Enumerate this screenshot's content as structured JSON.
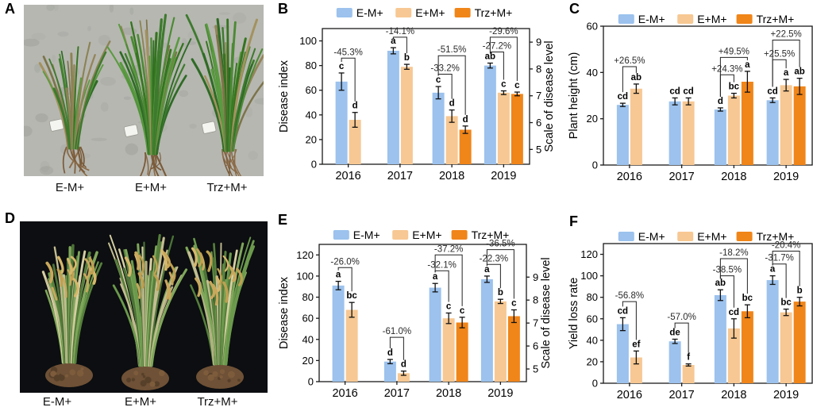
{
  "panels": {
    "A": {
      "label": "A",
      "treatments": [
        "E-M+",
        "E+M+",
        "Trz+M+"
      ],
      "description": "rice seedlings photo on concrete"
    },
    "B": {
      "label": "B"
    },
    "C": {
      "label": "C"
    },
    "D": {
      "label": "D",
      "treatments": [
        "E-M+",
        "E+M+",
        "Trz+M+"
      ],
      "description": "mature rice plants photo on black"
    },
    "E": {
      "label": "E"
    },
    "F": {
      "label": "F"
    }
  },
  "colors": {
    "blue": "#9CC2ED",
    "tan": "#F7C893",
    "orange": "#F08519",
    "axis": "#1a1a1a",
    "annotation": "#2b2b2b"
  },
  "chart_data": [
    {
      "panel": "B",
      "type": "bar",
      "title": "",
      "ylabel": "Disease index",
      "ylim": [
        0,
        110
      ],
      "yticks": [
        0,
        20,
        40,
        60,
        80,
        100
      ],
      "right_axis": {
        "label": "Scale of disease level",
        "ticks": [
          5,
          6,
          7,
          8,
          9
        ],
        "left_units": [
          12,
          33.75,
          55.5,
          77.25,
          99
        ]
      },
      "categories": [
        "2016",
        "2017",
        "2018",
        "2019"
      ],
      "series": [
        {
          "name": "E-M+",
          "color": "blue",
          "values": [
            67,
            92,
            58,
            80
          ],
          "errors": [
            7,
            2.5,
            5,
            2
          ],
          "letters": [
            "c",
            "a",
            "c",
            "ab"
          ]
        },
        {
          "name": "E+M+",
          "color": "tan",
          "values": [
            36,
            79,
            39,
            58
          ],
          "errors": [
            6,
            2,
            5,
            1.5
          ],
          "letters": [
            "d",
            "b",
            "d",
            "c"
          ]
        },
        {
          "name": "Trz+M+",
          "color": "orange",
          "values": [
            null,
            null,
            28,
            57
          ],
          "errors": [
            null,
            null,
            3,
            1.5
          ],
          "letters": [
            "",
            "",
            "d",
            "c"
          ]
        }
      ],
      "brackets": [
        {
          "category": 0,
          "from": 0,
          "to": 1,
          "label": "-45.3%",
          "level": 86
        },
        {
          "category": 1,
          "from": 0,
          "to": 1,
          "label": "-14.1%",
          "level": 103
        },
        {
          "category": 2,
          "from": 0,
          "to": 1,
          "label": "-33.2%",
          "level": 73
        },
        {
          "category": 2,
          "from": 0,
          "to": 2,
          "label": "-51.5%",
          "level": 88
        },
        {
          "category": 3,
          "from": 0,
          "to": 1,
          "label": "-27.2%",
          "level": 91
        },
        {
          "category": 3,
          "from": 0,
          "to": 2,
          "label": "-29.6%",
          "level": 103
        }
      ],
      "legend_position": "top"
    },
    {
      "panel": "C",
      "type": "bar",
      "title": "",
      "ylabel": "Plant height (cm)",
      "ylim": [
        0,
        60
      ],
      "yticks": [
        0,
        20,
        40,
        60
      ],
      "categories": [
        "2016",
        "2017",
        "2018",
        "2019"
      ],
      "series": [
        {
          "name": "E-M+",
          "color": "blue",
          "values": [
            26,
            27.5,
            24,
            28
          ],
          "errors": [
            0.7,
            1.5,
            0.7,
            1
          ],
          "letters": [
            "cd",
            "cd",
            "d",
            "cd"
          ]
        },
        {
          "name": "E+M+",
          "color": "tan",
          "values": [
            33,
            27.5,
            30,
            34.5
          ],
          "errors": [
            2,
            1.5,
            1,
            2.5
          ],
          "letters": [
            "ab",
            "cd",
            "bc",
            "a"
          ]
        },
        {
          "name": "Trz+M+",
          "color": "orange",
          "values": [
            null,
            null,
            36,
            34
          ],
          "errors": [
            null,
            null,
            4.5,
            3.5
          ],
          "letters": [
            "",
            "",
            "a",
            "ab"
          ]
        }
      ],
      "brackets": [
        {
          "category": 0,
          "from": 0,
          "to": 1,
          "label": "+26.5%",
          "level": 42.5
        },
        {
          "category": 2,
          "from": 0,
          "to": 1,
          "label": "+24.3%",
          "level": 39
        },
        {
          "category": 2,
          "from": 0,
          "to": 2,
          "label": "+49.5%",
          "level": 46.5
        },
        {
          "category": 3,
          "from": 0,
          "to": 1,
          "label": "+25.5%",
          "level": 45.5
        },
        {
          "category": 3,
          "from": 0,
          "to": 2,
          "label": "+22.5%",
          "level": 54
        }
      ],
      "legend_position": "top"
    },
    {
      "panel": "E",
      "type": "bar",
      "title": "",
      "ylabel": "Disease index",
      "ylim": [
        0,
        130
      ],
      "yticks": [
        0,
        20,
        40,
        60,
        80,
        100,
        120
      ],
      "right_axis": {
        "label": "Scale of disease level",
        "ticks": [
          5,
          6,
          7,
          8,
          9
        ],
        "left_units": [
          12,
          33.75,
          55.5,
          77.25,
          99
        ]
      },
      "categories": [
        "2016",
        "2017",
        "2018",
        "2019"
      ],
      "series": [
        {
          "name": "E-M+",
          "color": "blue",
          "values": [
            91,
            19,
            89,
            97
          ],
          "errors": [
            4,
            2,
            4,
            3
          ],
          "letters": [
            "a",
            "d",
            "a",
            "a"
          ]
        },
        {
          "name": "E+M+",
          "color": "tan",
          "values": [
            68,
            8,
            60,
            76
          ],
          "errors": [
            7,
            2,
            5,
            2
          ],
          "letters": [
            "bc",
            "d",
            "c",
            "b"
          ]
        },
        {
          "name": "Trz+M+",
          "color": "orange",
          "values": [
            null,
            null,
            56,
            62
          ],
          "errors": [
            null,
            null,
            5,
            6
          ],
          "letters": [
            "",
            "",
            "c",
            "c"
          ]
        }
      ],
      "brackets": [
        {
          "category": 0,
          "from": 0,
          "to": 1,
          "label": "-26.0%",
          "level": 108
        },
        {
          "category": 1,
          "from": 0,
          "to": 1,
          "label": "-61.0%",
          "level": 42
        },
        {
          "category": 2,
          "from": 0,
          "to": 1,
          "label": "-32.1%",
          "level": 105
        },
        {
          "category": 2,
          "from": 0,
          "to": 2,
          "label": "-37.2%",
          "level": 120
        },
        {
          "category": 3,
          "from": 0,
          "to": 1,
          "label": "-22.3%",
          "level": 111
        },
        {
          "category": 3,
          "from": 0,
          "to": 2,
          "label": "-36.5%",
          "level": 125
        }
      ],
      "legend_position": "top"
    },
    {
      "panel": "F",
      "type": "bar",
      "title": "",
      "ylabel": "Yield loss rate",
      "ylim": [
        0,
        130
      ],
      "yticks": [
        0,
        20,
        40,
        60,
        80,
        100,
        120
      ],
      "categories": [
        "2016",
        "2017",
        "2018",
        "2019"
      ],
      "series": [
        {
          "name": "E-M+",
          "color": "blue",
          "values": [
            55,
            39,
            82,
            96
          ],
          "errors": [
            6,
            2,
            5,
            4
          ],
          "letters": [
            "cd",
            "de",
            "ab",
            "a"
          ]
        },
        {
          "name": "E+M+",
          "color": "tan",
          "values": [
            24,
            17,
            51,
            66
          ],
          "errors": [
            6,
            1,
            9,
            3
          ],
          "letters": [
            "ef",
            "f",
            "cd",
            "bc"
          ]
        },
        {
          "name": "Trz+M+",
          "color": "orange",
          "values": [
            null,
            null,
            67,
            76
          ],
          "errors": [
            null,
            null,
            6,
            4
          ],
          "letters": [
            "",
            "",
            "bc",
            "b"
          ]
        }
      ],
      "brackets": [
        {
          "category": 0,
          "from": 0,
          "to": 1,
          "label": "-56.8%",
          "level": 76
        },
        {
          "category": 1,
          "from": 0,
          "to": 1,
          "label": "-57.0%",
          "level": 56
        },
        {
          "category": 2,
          "from": 0,
          "to": 1,
          "label": "-38.5%",
          "level": 100
        },
        {
          "category": 2,
          "from": 0,
          "to": 2,
          "label": "-18.2%",
          "level": 116
        },
        {
          "category": 3,
          "from": 0,
          "to": 1,
          "label": "-31.7%",
          "level": 111
        },
        {
          "category": 3,
          "from": 0,
          "to": 2,
          "label": "-20.4%",
          "level": 123
        }
      ],
      "legend_position": "top"
    }
  ]
}
